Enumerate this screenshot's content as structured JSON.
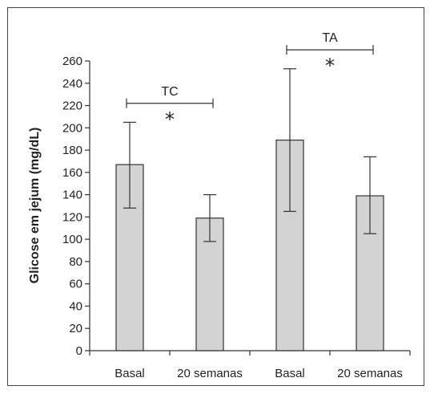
{
  "chart_data": {
    "type": "bar",
    "title": "",
    "xlabel": "",
    "ylabel": "Glicose em jejum (mg/dL)",
    "ylim": [
      0,
      260
    ],
    "yticks": [
      0,
      20,
      40,
      60,
      80,
      100,
      120,
      140,
      160,
      180,
      200,
      220,
      240,
      260
    ],
    "categories": [
      "Basal",
      "20 semanas",
      "Basal",
      "20 semanas"
    ],
    "values": [
      167,
      119,
      189,
      139
    ],
    "error_low": [
      128,
      98,
      125,
      105
    ],
    "error_high": [
      205,
      140,
      253,
      174
    ],
    "bar_color": "#d3d3d3",
    "grid": false,
    "annotations": [
      {
        "label": "TC",
        "from_index": 0,
        "to_index": 1,
        "y": 222,
        "mark": "*"
      },
      {
        "label": "TA",
        "from_index": 2,
        "to_index": 3,
        "y": 270,
        "mark": "*"
      }
    ]
  }
}
